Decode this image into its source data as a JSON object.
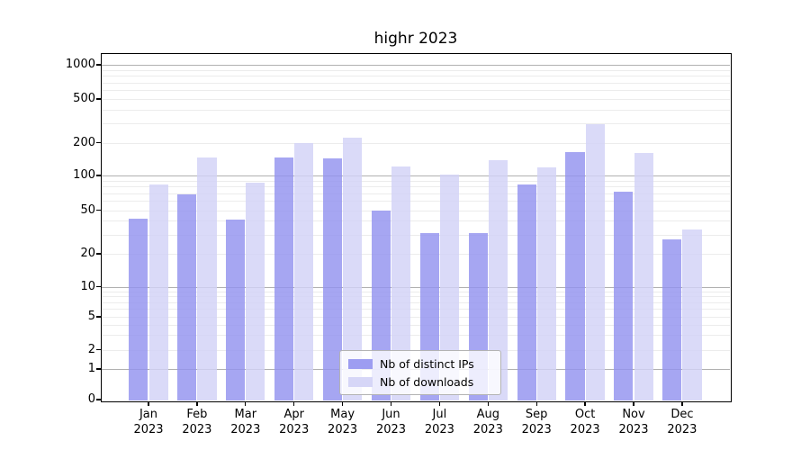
{
  "title": "highr 2023",
  "chart_data": {
    "type": "bar",
    "title": "highr 2023",
    "categories": [
      "Jan",
      "Feb",
      "Mar",
      "Apr",
      "May",
      "Jun",
      "Jul",
      "Aug",
      "Sep",
      "Oct",
      "Nov",
      "Dec"
    ],
    "category_year": "2023",
    "xlabel": "",
    "ylabel": "",
    "yscale": "symlog",
    "yticks": [
      0,
      1,
      2,
      5,
      10,
      20,
      50,
      100,
      200,
      500,
      1000
    ],
    "ylim": [
      0,
      1300
    ],
    "grid": true,
    "legend_position": "lower center",
    "series": [
      {
        "name": "Nb of distinct IPs",
        "color": "#9292ef",
        "values": [
          42,
          68,
          41,
          145,
          143,
          50,
          31,
          31,
          84,
          163,
          72,
          27
        ]
      },
      {
        "name": "Nb of downloads",
        "color": "#d2d2f6",
        "values": [
          84,
          145,
          87,
          200,
          220,
          122,
          102,
          138,
          118,
          292,
          160,
          33
        ]
      }
    ]
  },
  "colors": {
    "major_grid": "#b0b0b0",
    "minor_grid": "#ececec",
    "axis": "#000000",
    "background": "#ffffff"
  }
}
